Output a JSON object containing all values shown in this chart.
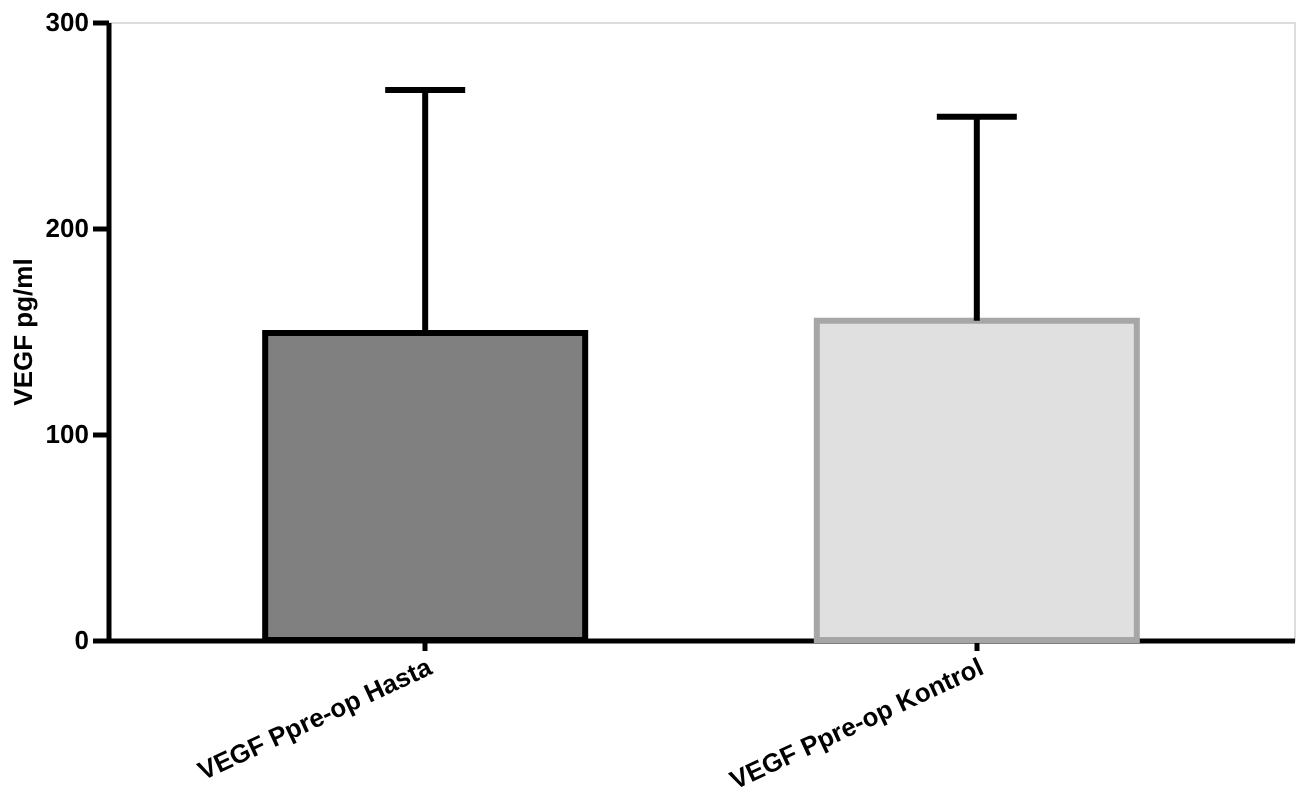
{
  "chart_data": {
    "type": "bar",
    "ylabel": "VEGF pg/ml",
    "categories": [
      "VEGF Ppre-op Hasta",
      "VEGF Ppre-op Kontrol"
    ],
    "values": [
      149,
      155
    ],
    "colors": [
      "#808080",
      "#e0e0e0"
    ],
    "errors": [
      [
        149,
        267
      ],
      [
        155,
        254
      ]
    ],
    "ylim": [
      0,
      300
    ],
    "yticks": [
      0,
      100,
      200,
      300
    ],
    "grid": false
  }
}
